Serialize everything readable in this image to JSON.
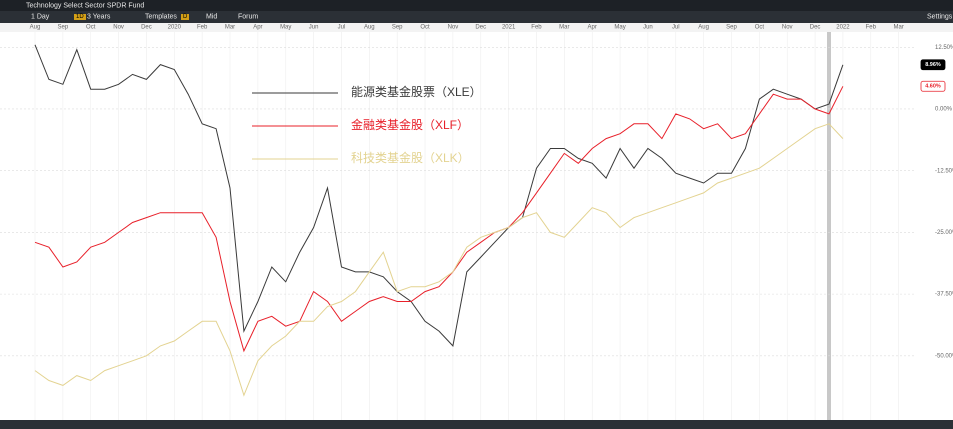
{
  "toolbar": {
    "tab": "Technology Select Sector SPDR Fund",
    "interval": "1 Day",
    "badge_period": "1D",
    "range": "3 Years",
    "templates": "Templates",
    "badge_d": "D",
    "price": "Mid",
    "forum": "Forum",
    "settings": "Settings"
  },
  "chart_data": {
    "type": "line",
    "categories": [
      "Aug",
      null,
      "Sep",
      null,
      "Oct",
      null,
      "Nov",
      null,
      "Dec",
      null,
      "2020",
      null,
      "Feb",
      null,
      "Mar",
      null,
      "Apr",
      null,
      "May",
      null,
      "Jun",
      null,
      "Jul",
      null,
      "Aug",
      null,
      "Sep",
      null,
      "Oct",
      null,
      "Nov",
      null,
      "Dec",
      null,
      "2021",
      null,
      "Feb",
      null,
      "Mar",
      null,
      "Apr",
      null,
      "May",
      null,
      "Jun",
      null,
      "Jul",
      null,
      "Aug",
      null,
      "Sep",
      null,
      "Oct",
      null,
      "Nov",
      null,
      "Dec",
      null,
      "2022",
      null,
      "Feb",
      null,
      "Mar",
      null
    ],
    "series": [
      {
        "name": "能源类基金股票（XLE）",
        "color": "#3a3a3a",
        "values": [
          13,
          6,
          5,
          12,
          4,
          4,
          5,
          7,
          6,
          9,
          8,
          3,
          -3,
          -4,
          -16,
          -45,
          -39,
          -32,
          -35,
          -29,
          -24,
          -16,
          -32,
          -33,
          -33,
          -34,
          -37,
          -39,
          -43,
          -45,
          -48,
          -33,
          -30,
          -27,
          -24,
          -22,
          -12,
          -8,
          -8,
          -10,
          -11,
          -14,
          -8,
          -12,
          -8,
          -10,
          -13,
          -14,
          -15,
          -13,
          -13,
          -8,
          2,
          4,
          3,
          2,
          0,
          1,
          8.96,
          null,
          null,
          null,
          null,
          null
        ]
      },
      {
        "name": "金融类基金股（XLF）",
        "color": "#e8202a",
        "values": [
          -27,
          -28,
          -32,
          -31,
          -28,
          -27,
          -25,
          -23,
          -22,
          -21,
          -21,
          -21,
          -21,
          -26,
          -39,
          -49,
          -43,
          -42,
          -44,
          -43,
          -37,
          -39,
          -43,
          -41,
          -39,
          -38,
          -39,
          -39,
          -37,
          -36,
          -33,
          -29,
          -27,
          -25,
          -24,
          -21,
          -17,
          -13,
          -9,
          -11,
          -8,
          -6,
          -5,
          -3,
          -3,
          -6,
          -1,
          -2,
          -4,
          -3,
          -6,
          -5,
          -1,
          3,
          2,
          2,
          0,
          -1,
          4.6,
          null,
          null,
          null,
          null,
          null
        ]
      },
      {
        "name": "科技类基金股（XLK）",
        "color": "#e3d391",
        "values": [
          -53,
          -55,
          -56,
          -54,
          -55,
          -53,
          -52,
          -51,
          -50,
          -48,
          -47,
          -45,
          -43,
          -43,
          -49,
          -58,
          -51,
          -48,
          -46,
          -43,
          -43,
          -40,
          -39,
          -37,
          -33,
          -29,
          -37,
          -36,
          -36,
          -35,
          -33,
          -28,
          -26,
          -25,
          -24,
          -22,
          -21,
          -25,
          -26,
          -23,
          -20,
          -21,
          -24,
          -22,
          -21,
          -20,
          -19,
          -18,
          -17,
          -15,
          -14,
          -13,
          -12,
          -10,
          -8,
          -6,
          -4,
          -3,
          -6,
          null,
          null,
          null,
          null,
          null
        ]
      }
    ],
    "ylim": [
      -63,
      16
    ],
    "yticks": [
      {
        "value": 12.5,
        "label": "12.50%"
      },
      {
        "value": 0,
        "label": "0.00%"
      },
      {
        "value": -12.5,
        "label": "-12.50%"
      },
      {
        "value": -25,
        "label": "-25.00%"
      },
      {
        "value": -37.5,
        "label": "-37.50%"
      },
      {
        "value": -50,
        "label": "-50.00%"
      }
    ],
    "price_tags": [
      {
        "value": 8.96,
        "label": "8.96%",
        "color": "#000000"
      },
      {
        "value": 4.6,
        "label": "4.60%",
        "color": "#e8202a"
      }
    ],
    "grid": true
  }
}
